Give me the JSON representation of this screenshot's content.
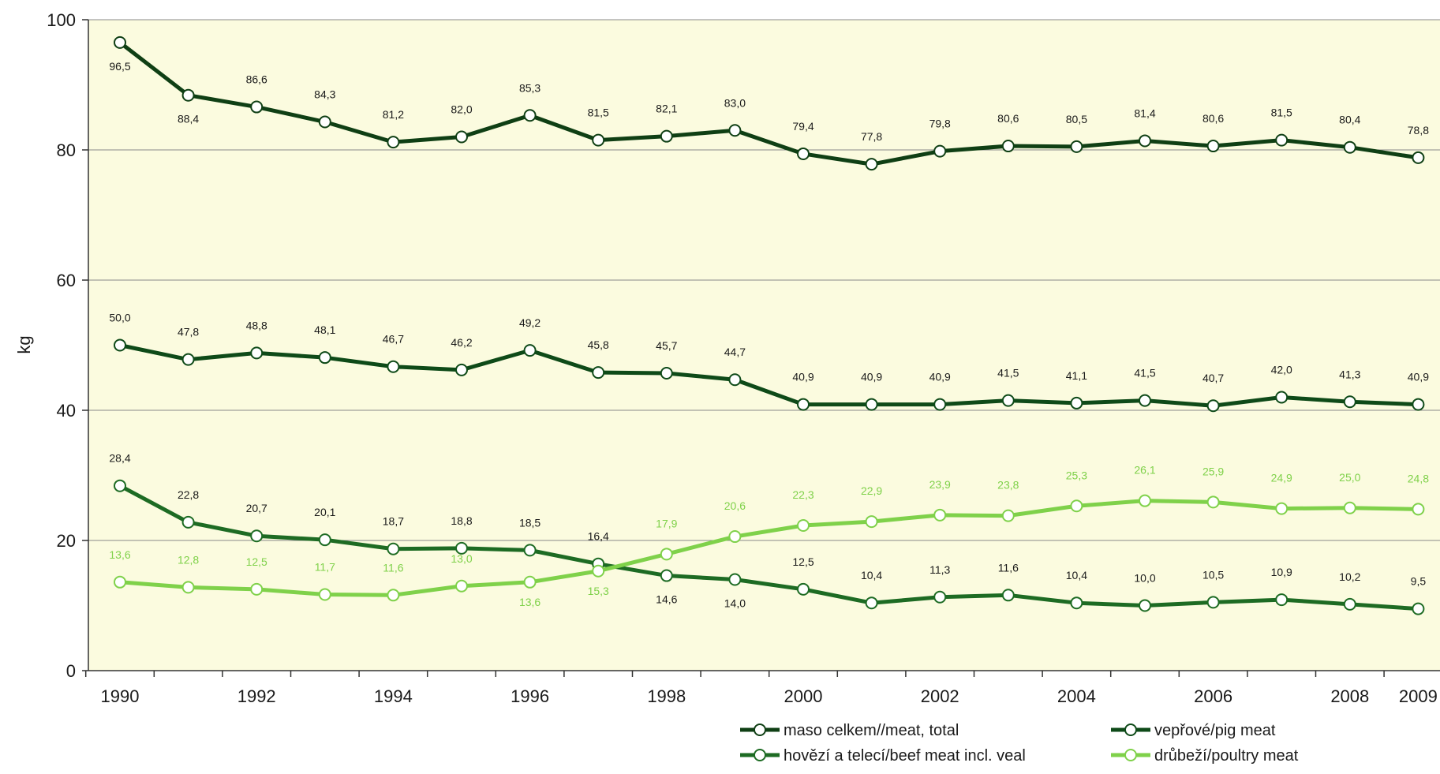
{
  "chart_data": {
    "type": "line",
    "title": "",
    "ylabel": "kg",
    "xlabel": "",
    "ylim": [
      0,
      100
    ],
    "yticks": [
      0,
      20,
      40,
      60,
      80,
      100
    ],
    "y_tick_labels": [
      "0",
      "20",
      "40",
      "60",
      "80",
      "100"
    ],
    "x": [
      1990,
      1991,
      1992,
      1993,
      1994,
      1995,
      1996,
      1997,
      1998,
      1999,
      2000,
      2001,
      2002,
      2003,
      2004,
      2005,
      2006,
      2007,
      2008,
      2009
    ],
    "x_tick_labels": [
      "1990",
      "1992",
      "1994",
      "1996",
      "1998",
      "2000",
      "2002",
      "2004",
      "2006",
      "2008",
      "2009"
    ],
    "grid": "horizontal",
    "plot_background": "#fbfbdf",
    "legend_position": "bottom-right",
    "series": [
      {
        "name": "maso celkem//meat, total",
        "color": "#0f3f14",
        "values": [
          96.5,
          88.4,
          86.6,
          84.3,
          81.2,
          82.0,
          85.3,
          81.5,
          82.1,
          83.0,
          79.4,
          77.8,
          79.8,
          80.6,
          80.5,
          81.4,
          80.6,
          81.5,
          80.4,
          78.8
        ],
        "labels": [
          "96,5",
          "88,4",
          "86,6",
          "84,3",
          "81,2",
          "82,0",
          "85,3",
          "81,5",
          "82,1",
          "83,0",
          "79,4",
          "77,8",
          "79,8",
          "80,6",
          "80,5",
          "81,4",
          "80,6",
          "81,5",
          "80,4",
          "78,8"
        ]
      },
      {
        "name": "vepřové/pig meat",
        "color": "#0e4a18",
        "values": [
          50.0,
          47.8,
          48.8,
          48.1,
          46.7,
          46.2,
          49.2,
          45.8,
          45.7,
          44.7,
          40.9,
          40.9,
          40.9,
          41.5,
          41.1,
          41.5,
          40.7,
          42.0,
          41.3,
          40.9
        ],
        "labels": [
          "50,0",
          "47,8",
          "48,8",
          "48,1",
          "46,7",
          "46,2",
          "49,2",
          "45,8",
          "45,7",
          "44,7",
          "40,9",
          "40,9",
          "40,9",
          "41,5",
          "41,1",
          "41,5",
          "40,7",
          "42,0",
          "41,3",
          "40,9"
        ]
      },
      {
        "name": "hovězí a telecí/beef meat incl. veal",
        "color": "#1d6b23",
        "values": [
          28.4,
          22.8,
          20.7,
          20.1,
          18.7,
          18.8,
          18.5,
          16.4,
          14.6,
          14.0,
          12.5,
          10.4,
          11.3,
          11.6,
          10.4,
          10.0,
          10.5,
          10.9,
          10.2,
          9.5
        ],
        "labels": [
          "28,4",
          "22,8",
          "20,7",
          "20,1",
          "18,7",
          "18,8",
          "18,5",
          "16,4",
          "14,6",
          "14,0",
          "12,5",
          "10,4",
          "11,3",
          "11,6",
          "10,4",
          "10,0",
          "10,5",
          "10,9",
          "10,2",
          "9,5"
        ]
      },
      {
        "name": "drůbeží/poultry meat",
        "color": "#7fd14a",
        "values": [
          13.6,
          12.8,
          12.5,
          11.7,
          11.6,
          13.0,
          13.6,
          15.3,
          17.9,
          20.6,
          22.3,
          22.9,
          23.9,
          23.8,
          25.3,
          26.1,
          25.9,
          24.9,
          25.0,
          24.8
        ],
        "labels": [
          "13,6",
          "12,8",
          "12,5",
          "11,7",
          "11,6",
          "13,0",
          "13,6",
          "15,3",
          "17,9",
          "20,6",
          "22,3",
          "22,9",
          "23,9",
          "23,8",
          "25,3",
          "26,1",
          "25,9",
          "24,9",
          "25,0",
          "24,8"
        ]
      }
    ]
  }
}
